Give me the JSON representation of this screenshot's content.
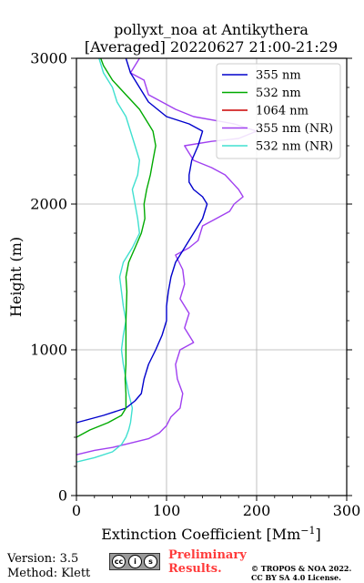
{
  "chart_data": {
    "type": "line",
    "title": "pollyxt_noa at Antikythera",
    "subtitle": "[Averaged] 20220627 21:00-21:29",
    "xlabel": "Extinction Coefficient [Mm",
    "xlabel_superscript": "−1",
    "xlabel_suffix": "]",
    "ylabel": "Height (m)",
    "xlim": [
      0,
      300
    ],
    "ylim": [
      0,
      3000
    ],
    "xticks": [
      "0",
      "100",
      "200",
      "300"
    ],
    "yticks": [
      "0",
      "1000",
      "2000",
      "3000"
    ],
    "grid": true,
    "legend_position": "top-right",
    "series": [
      {
        "name": "355 nm",
        "color": "#0000cc",
        "points": [
          [
            0,
            500
          ],
          [
            30,
            550
          ],
          [
            55,
            600
          ],
          [
            65,
            650
          ],
          [
            72,
            700
          ],
          [
            75,
            800
          ],
          [
            80,
            900
          ],
          [
            88,
            1000
          ],
          [
            95,
            1100
          ],
          [
            100,
            1200
          ],
          [
            100,
            1300
          ],
          [
            102,
            1400
          ],
          [
            105,
            1500
          ],
          [
            110,
            1600
          ],
          [
            120,
            1700
          ],
          [
            130,
            1800
          ],
          [
            140,
            1900
          ],
          [
            145,
            2000
          ],
          [
            140,
            2050
          ],
          [
            130,
            2100
          ],
          [
            125,
            2150
          ],
          [
            125,
            2200
          ],
          [
            128,
            2300
          ],
          [
            135,
            2400
          ],
          [
            140,
            2500
          ],
          [
            125,
            2550
          ],
          [
            100,
            2600
          ],
          [
            80,
            2700
          ],
          [
            70,
            2800
          ],
          [
            60,
            2900
          ],
          [
            55,
            3000
          ]
        ]
      },
      {
        "name": "532 nm",
        "color": "#00aa00",
        "points": [
          [
            0,
            400
          ],
          [
            15,
            450
          ],
          [
            35,
            500
          ],
          [
            50,
            550
          ],
          [
            55,
            600
          ],
          [
            55,
            700
          ],
          [
            54,
            800
          ],
          [
            55,
            900
          ],
          [
            55,
            1000
          ],
          [
            55,
            1200
          ],
          [
            56,
            1400
          ],
          [
            55,
            1500
          ],
          [
            58,
            1600
          ],
          [
            65,
            1700
          ],
          [
            72,
            1800
          ],
          [
            76,
            1900
          ],
          [
            75,
            2000
          ],
          [
            78,
            2100
          ],
          [
            82,
            2200
          ],
          [
            85,
            2300
          ],
          [
            88,
            2400
          ],
          [
            85,
            2500
          ],
          [
            80,
            2550
          ],
          [
            70,
            2650
          ],
          [
            55,
            2750
          ],
          [
            40,
            2850
          ],
          [
            30,
            2950
          ],
          [
            27,
            3000
          ]
        ]
      },
      {
        "name": "1064 nm",
        "color": "#cc0000",
        "points": []
      },
      {
        "name": "355 nm (NR)",
        "color": "#a040f0",
        "points": [
          [
            0,
            280
          ],
          [
            20,
            310
          ],
          [
            40,
            330
          ],
          [
            60,
            360
          ],
          [
            80,
            390
          ],
          [
            92,
            430
          ],
          [
            100,
            480
          ],
          [
            105,
            540
          ],
          [
            115,
            600
          ],
          [
            118,
            700
          ],
          [
            112,
            800
          ],
          [
            110,
            900
          ],
          [
            115,
            1000
          ],
          [
            130,
            1050
          ],
          [
            120,
            1150
          ],
          [
            125,
            1250
          ],
          [
            115,
            1350
          ],
          [
            120,
            1450
          ],
          [
            118,
            1550
          ],
          [
            110,
            1650
          ],
          [
            125,
            1700
          ],
          [
            135,
            1750
          ],
          [
            140,
            1850
          ],
          [
            155,
            1900
          ],
          [
            170,
            1950
          ],
          [
            175,
            2000
          ],
          [
            185,
            2050
          ],
          [
            180,
            2100
          ],
          [
            165,
            2200
          ],
          [
            150,
            2250
          ],
          [
            130,
            2300
          ],
          [
            120,
            2400
          ],
          [
            150,
            2430
          ],
          [
            180,
            2450
          ],
          [
            200,
            2500
          ],
          [
            175,
            2550
          ],
          [
            130,
            2600
          ],
          [
            110,
            2650
          ],
          [
            95,
            2700
          ],
          [
            80,
            2750
          ],
          [
            75,
            2850
          ],
          [
            60,
            2900
          ],
          [
            70,
            3000
          ]
        ]
      },
      {
        "name": "532 nm (NR)",
        "color": "#40e0d0",
        "points": [
          [
            0,
            230
          ],
          [
            20,
            260
          ],
          [
            40,
            300
          ],
          [
            50,
            350
          ],
          [
            55,
            400
          ],
          [
            58,
            450
          ],
          [
            60,
            500
          ],
          [
            62,
            600
          ],
          [
            58,
            700
          ],
          [
            55,
            800
          ],
          [
            52,
            900
          ],
          [
            50,
            1000
          ],
          [
            52,
            1100
          ],
          [
            55,
            1200
          ],
          [
            52,
            1300
          ],
          [
            50,
            1400
          ],
          [
            48,
            1500
          ],
          [
            52,
            1600
          ],
          [
            62,
            1700
          ],
          [
            70,
            1800
          ],
          [
            68,
            1900
          ],
          [
            65,
            2000
          ],
          [
            62,
            2100
          ],
          [
            68,
            2200
          ],
          [
            70,
            2300
          ],
          [
            65,
            2400
          ],
          [
            60,
            2500
          ],
          [
            55,
            2600
          ],
          [
            45,
            2700
          ],
          [
            40,
            2800
          ],
          [
            30,
            2900
          ],
          [
            25,
            3000
          ]
        ]
      }
    ]
  },
  "footer": {
    "version": "Version: 3.5",
    "method": "Method: Klett",
    "preliminary_line1": "Preliminary",
    "preliminary_line2": "Results.",
    "copyright_line1": "© TROPOS & NOA 2022.",
    "copyright_line2": "CC BY SA 4.0 License.",
    "license_badge": {
      "symbols": [
        "cc",
        "i",
        "s"
      ],
      "labels": [
        "BY",
        "SA"
      ]
    }
  }
}
